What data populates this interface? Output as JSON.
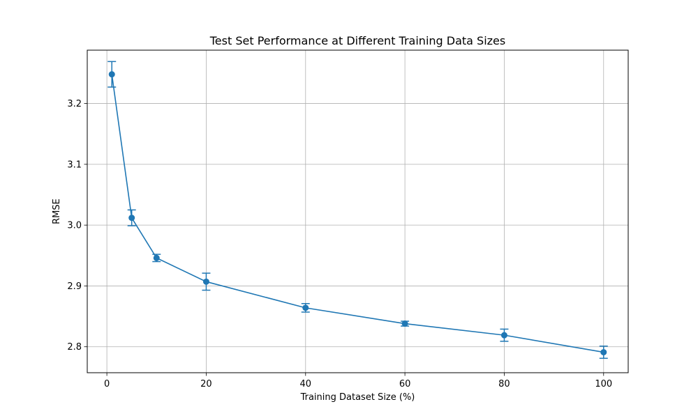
{
  "chart_data": {
    "type": "line",
    "title": "Test Set Performance at Different Training Data Sizes",
    "xlabel": "Training Dataset Size (%)",
    "ylabel": "RMSE",
    "xlim": [
      -3.95,
      104.95
    ],
    "ylim": [
      2.7573,
      3.2877
    ],
    "xticks": [
      0,
      20,
      40,
      60,
      80,
      100
    ],
    "xtick_labels": [
      "0",
      "20",
      "40",
      "60",
      "80",
      "100"
    ],
    "yticks": [
      2.8,
      2.9,
      3.0,
      3.1,
      3.2
    ],
    "ytick_labels": [
      "2.8",
      "2.9",
      "3.0",
      "3.1",
      "3.2"
    ],
    "grid": true,
    "series": [
      {
        "color": "#1f77b4",
        "x": [
          1,
          5,
          10,
          20,
          40,
          60,
          80,
          100
        ],
        "y": [
          3.248,
          3.012,
          2.946,
          2.907,
          2.864,
          2.838,
          2.819,
          2.791
        ],
        "err": [
          0.021,
          0.013,
          0.006,
          0.014,
          0.007,
          0.004,
          0.01,
          0.01
        ]
      }
    ]
  }
}
